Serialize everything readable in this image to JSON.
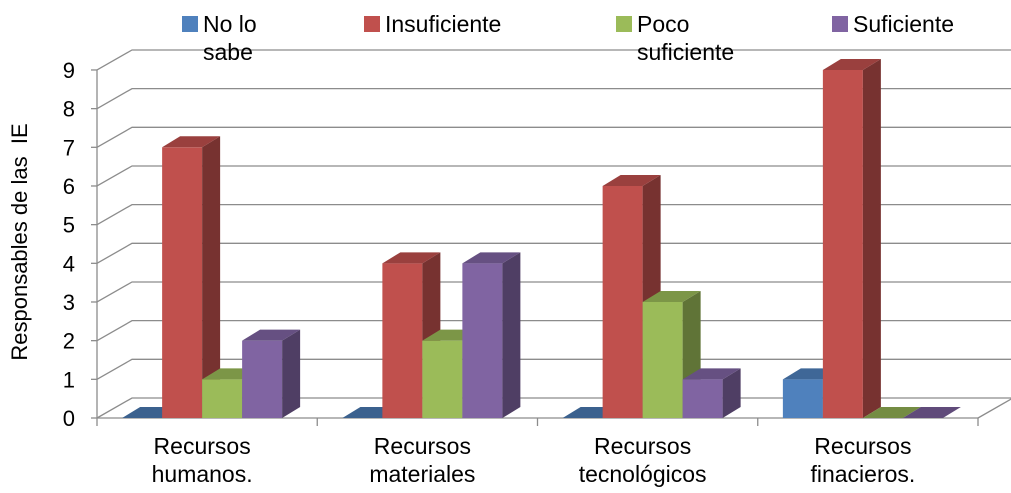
{
  "chart_data": {
    "type": "bar",
    "categories": [
      "Recursos humanos.",
      "Recursos materiales",
      "Recursos tecnológicos",
      "Recursos finacieros."
    ],
    "category_lines": [
      [
        "Recursos",
        "humanos."
      ],
      [
        "Recursos",
        "materiales"
      ],
      [
        "Recursos",
        "tecnológicos"
      ],
      [
        "Recursos",
        "finacieros."
      ]
    ],
    "series": [
      {
        "name": "No lo sabe",
        "label_lines": [
          "No lo",
          "sabe"
        ],
        "color": "#4F81BD",
        "values": [
          0,
          0,
          0,
          1
        ]
      },
      {
        "name": "Insuficiente",
        "label_lines": [
          "Insuficiente"
        ],
        "color": "#C0504D",
        "values": [
          7,
          4,
          6,
          9
        ]
      },
      {
        "name": "Poco suficiente",
        "label_lines": [
          "Poco",
          "suficiente"
        ],
        "color": "#9BBB59",
        "values": [
          1,
          2,
          3,
          0
        ]
      },
      {
        "name": "Suficiente",
        "label_lines": [
          "Suficiente"
        ],
        "color": "#8064A2",
        "values": [
          2,
          4,
          1,
          0
        ]
      }
    ],
    "ylabel": "Responsables de las  IE",
    "ylim": [
      0,
      9
    ],
    "yticks": [
      0,
      1,
      2,
      3,
      4,
      5,
      6,
      7,
      8,
      9
    ],
    "grid": true,
    "legend_position": "top",
    "style": "3d-clustered-column"
  }
}
